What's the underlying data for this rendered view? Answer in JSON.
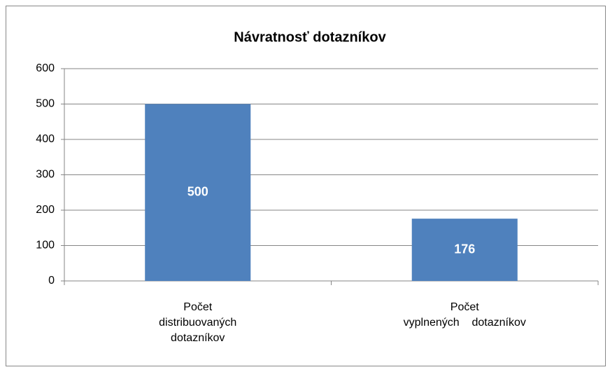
{
  "chart_data": {
    "type": "bar",
    "title": "Návratnosť dotazníkov",
    "categories": [
      "Počet\ndistribuovaných\ndotazníkov",
      "Počet\nvyplnených    dotazníkov"
    ],
    "values": [
      500,
      176
    ],
    "color": "#4f81bd",
    "ylim": [
      0,
      600
    ],
    "yticks": [
      0,
      100,
      200,
      300,
      400,
      500,
      600
    ],
    "grid": true
  }
}
